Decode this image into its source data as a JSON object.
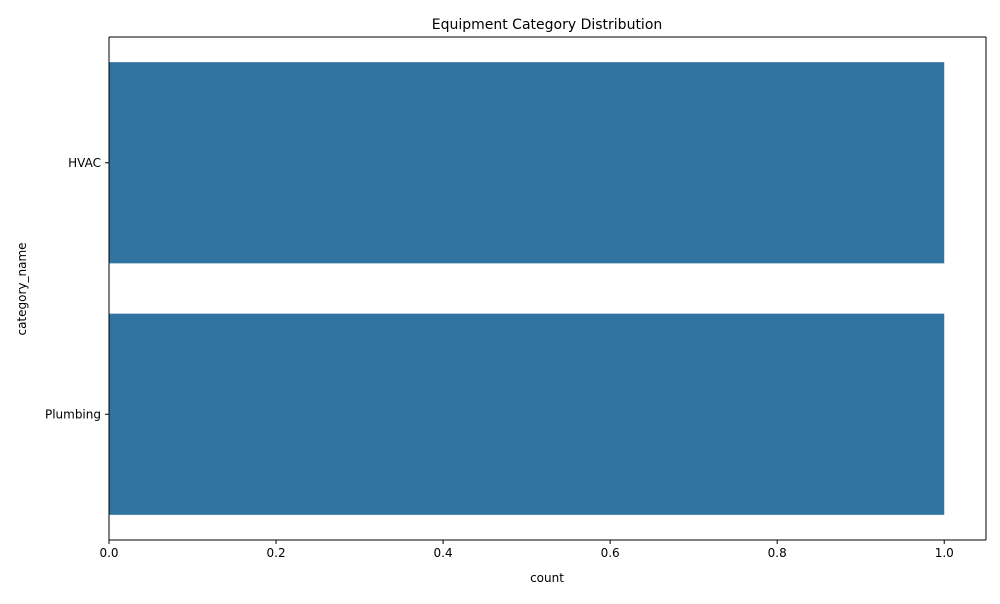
{
  "chart_data": {
    "type": "bar",
    "orientation": "horizontal",
    "title": "Equipment Category Distribution",
    "xlabel": "count",
    "ylabel": "category_name",
    "categories": [
      "HVAC",
      "Plumbing"
    ],
    "values": [
      1,
      1
    ],
    "xlim": [
      0,
      1.05
    ],
    "xticks": [
      "0.0",
      "0.2",
      "0.4",
      "0.6",
      "0.8",
      "1.0"
    ],
    "bar_color": "#3274a1",
    "grid": false,
    "legend": "none"
  }
}
